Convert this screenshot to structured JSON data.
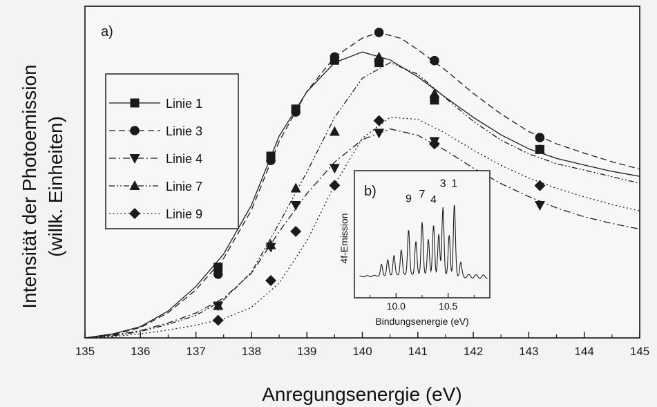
{
  "chart_data": [
    {
      "type": "line",
      "panel_label": "a)",
      "xlabel": "Anregungsenergie (eV)",
      "ylabel_line1": "Intensität der Photoemission",
      "ylabel_line2": "(willk. Einheiten)",
      "xlim": [
        135,
        145
      ],
      "ylim": [
        0,
        1.0
      ],
      "x_ticks": [
        135,
        136,
        137,
        138,
        139,
        140,
        141,
        142,
        143,
        144,
        145
      ],
      "legend_position": "left",
      "series": [
        {
          "name": "Linie 1",
          "marker": "square",
          "dash": "solid",
          "points": [
            [
              137.4,
              0.213
            ],
            [
              138.35,
              0.548
            ],
            [
              138.8,
              0.69
            ],
            [
              139.5,
              0.837
            ],
            [
              140.3,
              0.83
            ],
            [
              141.3,
              0.717
            ],
            [
              143.2,
              0.568
            ]
          ],
          "curve": [
            [
              135.0,
              0.0
            ],
            [
              135.5,
              0.012
            ],
            [
              136.0,
              0.034
            ],
            [
              136.5,
              0.081
            ],
            [
              137.0,
              0.155
            ],
            [
              137.5,
              0.253
            ],
            [
              138.0,
              0.4
            ],
            [
              138.5,
              0.608
            ],
            [
              139.0,
              0.742
            ],
            [
              139.5,
              0.83
            ],
            [
              140.0,
              0.862
            ],
            [
              140.5,
              0.838
            ],
            [
              141.0,
              0.787
            ],
            [
              141.5,
              0.725
            ],
            [
              142.0,
              0.665
            ],
            [
              142.5,
              0.612
            ],
            [
              143.0,
              0.57
            ],
            [
              143.5,
              0.541
            ],
            [
              144.0,
              0.521
            ],
            [
              144.5,
              0.502
            ],
            [
              145.0,
              0.487
            ]
          ]
        },
        {
          "name": "Linie 3",
          "marker": "circle",
          "dash": "dashed",
          "points": [
            [
              137.4,
              0.192
            ],
            [
              138.35,
              0.535
            ],
            [
              138.8,
              0.681
            ],
            [
              139.5,
              0.847
            ],
            [
              140.3,
              0.921
            ],
            [
              141.3,
              0.836
            ],
            [
              143.2,
              0.604
            ]
          ],
          "curve": [
            [
              135.0,
              0.0
            ],
            [
              135.5,
              0.01
            ],
            [
              136.0,
              0.031
            ],
            [
              136.5,
              0.076
            ],
            [
              137.0,
              0.145
            ],
            [
              137.5,
              0.24
            ],
            [
              138.0,
              0.385
            ],
            [
              138.5,
              0.592
            ],
            [
              139.0,
              0.743
            ],
            [
              139.5,
              0.847
            ],
            [
              140.0,
              0.904
            ],
            [
              140.3,
              0.921
            ],
            [
              140.7,
              0.903
            ],
            [
              141.0,
              0.869
            ],
            [
              141.5,
              0.807
            ],
            [
              142.0,
              0.737
            ],
            [
              142.5,
              0.675
            ],
            [
              143.0,
              0.622
            ],
            [
              143.5,
              0.585
            ],
            [
              144.0,
              0.557
            ],
            [
              144.5,
              0.531
            ],
            [
              145.0,
              0.509
            ]
          ]
        },
        {
          "name": "Linie 4",
          "marker": "triangle-down",
          "dash": "dash-dot",
          "points": [
            [
              137.4,
              0.097
            ],
            [
              138.35,
              0.274
            ],
            [
              138.8,
              0.4
            ],
            [
              139.5,
              0.512
            ],
            [
              140.3,
              0.618
            ],
            [
              141.3,
              0.593
            ],
            [
              143.2,
              0.4
            ]
          ],
          "curve": [
            [
              135.0,
              0.0
            ],
            [
              135.5,
              0.008
            ],
            [
              136.0,
              0.022
            ],
            [
              136.5,
              0.045
            ],
            [
              137.0,
              0.075
            ],
            [
              137.5,
              0.12
            ],
            [
              138.0,
              0.195
            ],
            [
              138.5,
              0.32
            ],
            [
              139.0,
              0.435
            ],
            [
              139.5,
              0.53
            ],
            [
              140.0,
              0.598
            ],
            [
              140.5,
              0.63
            ],
            [
              141.0,
              0.611
            ],
            [
              141.5,
              0.565
            ],
            [
              142.0,
              0.512
            ],
            [
              142.5,
              0.465
            ],
            [
              143.0,
              0.426
            ],
            [
              143.5,
              0.392
            ],
            [
              144.0,
              0.365
            ],
            [
              144.5,
              0.345
            ],
            [
              145.0,
              0.328
            ]
          ]
        },
        {
          "name": "Linie 7",
          "marker": "triangle-up",
          "dash": "dash-dot-dot",
          "points": [
            [
              137.4,
              0.097
            ],
            [
              138.35,
              0.28
            ],
            [
              138.8,
              0.451
            ],
            [
              139.5,
              0.622
            ],
            [
              140.3,
              0.846
            ],
            [
              141.3,
              0.736
            ],
            [
              143.2,
              0.568
            ]
          ],
          "curve": [
            [
              135.0,
              0.0
            ],
            [
              135.5,
              0.006
            ],
            [
              136.0,
              0.019
            ],
            [
              136.5,
              0.041
            ],
            [
              137.0,
              0.068
            ],
            [
              137.5,
              0.115
            ],
            [
              138.0,
              0.198
            ],
            [
              138.5,
              0.345
            ],
            [
              139.0,
              0.5
            ],
            [
              139.5,
              0.665
            ],
            [
              140.0,
              0.783
            ],
            [
              140.5,
              0.83
            ],
            [
              141.0,
              0.795
            ],
            [
              141.5,
              0.723
            ],
            [
              142.0,
              0.653
            ],
            [
              142.5,
              0.596
            ],
            [
              143.0,
              0.555
            ],
            [
              143.5,
              0.525
            ],
            [
              144.0,
              0.506
            ],
            [
              144.5,
              0.486
            ],
            [
              145.0,
              0.466
            ]
          ]
        },
        {
          "name": "Linie 9",
          "marker": "diamond",
          "dash": "dotted",
          "points": [
            [
              137.4,
              0.053
            ],
            [
              138.35,
              0.173
            ],
            [
              138.8,
              0.321
            ],
            [
              139.5,
              0.46
            ],
            [
              140.3,
              0.655
            ],
            [
              141.3,
              0.585
            ],
            [
              143.2,
              0.459
            ]
          ],
          "curve": [
            [
              135.0,
              0.0
            ],
            [
              135.5,
              0.004
            ],
            [
              136.0,
              0.012
            ],
            [
              136.5,
              0.024
            ],
            [
              137.0,
              0.038
            ],
            [
              137.5,
              0.058
            ],
            [
              138.0,
              0.092
            ],
            [
              138.5,
              0.165
            ],
            [
              139.0,
              0.292
            ],
            [
              139.5,
              0.462
            ],
            [
              140.0,
              0.602
            ],
            [
              140.5,
              0.665
            ],
            [
              141.0,
              0.659
            ],
            [
              141.5,
              0.617
            ],
            [
              142.0,
              0.566
            ],
            [
              142.5,
              0.52
            ],
            [
              143.0,
              0.482
            ],
            [
              143.5,
              0.451
            ],
            [
              144.0,
              0.425
            ],
            [
              144.5,
              0.402
            ],
            [
              145.0,
              0.383
            ]
          ]
        }
      ]
    },
    {
      "type": "line",
      "panel_label": "b)",
      "xlabel": "Bindungsenergie (eV)",
      "ylabel": "4f-Emission",
      "xlim": [
        9.6,
        10.9
      ],
      "ylim": [
        0,
        1.0
      ],
      "x_ticks": [
        10.0,
        10.5
      ],
      "x_tick_labels": [
        "10.0",
        "10.5"
      ],
      "peak_labels": [
        {
          "text": "9",
          "x": 10.12,
          "y": 0.85
        },
        {
          "text": "7",
          "x": 10.25,
          "y": 0.9
        },
        {
          "text": "4",
          "x": 10.36,
          "y": 0.84
        },
        {
          "text": "3",
          "x": 10.45,
          "y": 1.02
        },
        {
          "text": "1",
          "x": 10.56,
          "y": 1.02
        }
      ],
      "spectrum_peaks": [
        {
          "x": 9.86,
          "h": 0.12
        },
        {
          "x": 9.92,
          "h": 0.17
        },
        {
          "x": 9.98,
          "h": 0.22
        },
        {
          "x": 10.05,
          "h": 0.28
        },
        {
          "x": 10.12,
          "h": 0.5
        },
        {
          "x": 10.19,
          "h": 0.37
        },
        {
          "x": 10.25,
          "h": 0.59
        },
        {
          "x": 10.31,
          "h": 0.4
        },
        {
          "x": 10.36,
          "h": 0.55
        },
        {
          "x": 10.41,
          "h": 0.45
        },
        {
          "x": 10.45,
          "h": 0.76
        },
        {
          "x": 10.51,
          "h": 0.45
        },
        {
          "x": 10.56,
          "h": 0.79
        },
        {
          "x": 10.62,
          "h": 0.14
        }
      ]
    }
  ]
}
